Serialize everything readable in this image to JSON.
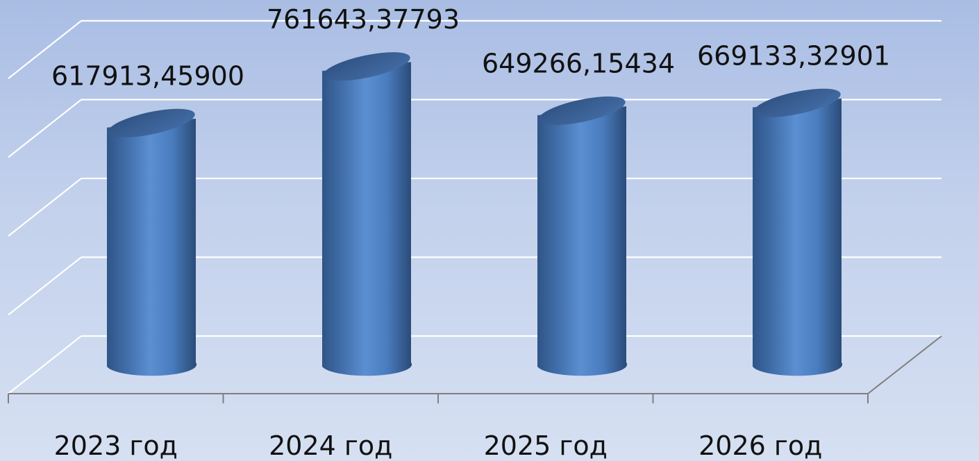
{
  "chart_data": {
    "type": "bar",
    "subtype": "3d-cylinder",
    "categories": [
      "2023 год",
      "2024 год",
      "2025 год",
      "2026 год"
    ],
    "values": [
      617913.459,
      761643.37793,
      649266.15434,
      669133.32901
    ],
    "data_labels": [
      "617913,45900",
      "761643,37793",
      "649266,15434",
      "669133,32901"
    ],
    "title": "",
    "xlabel": "",
    "ylabel": "",
    "ylim": [
      0,
      800000
    ],
    "grid": true,
    "legend": "none",
    "colors": {
      "bar_body": "#4f81bd",
      "bar_highlight": "#5b8fd2",
      "bar_shadow": "#2c4d78",
      "bar_top": "#3d6396",
      "gridline": "#ffffff",
      "axis": "#7f7f7f",
      "background_top": "#a9bde4",
      "background_bottom": "#d6e0f2"
    }
  }
}
